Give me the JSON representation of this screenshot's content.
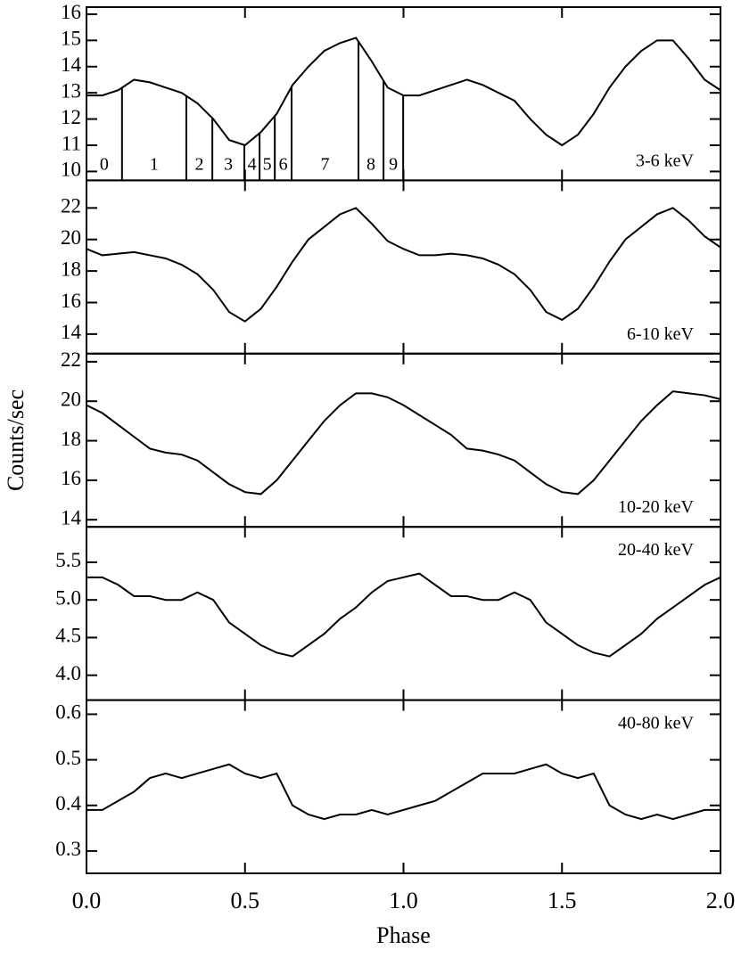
{
  "chart_data": [
    {
      "type": "line",
      "label": "3-6 keV",
      "label_corner": "lower right",
      "color": "#000000",
      "x": [
        0,
        0.05,
        0.1,
        0.15,
        0.2,
        0.25,
        0.3,
        0.35,
        0.4,
        0.45,
        0.5,
        0.55,
        0.6,
        0.65,
        0.7,
        0.75,
        0.8,
        0.85,
        0.9,
        0.95,
        1.0,
        1.05,
        1.1,
        1.15,
        1.2,
        1.25,
        1.3,
        1.35,
        1.4,
        1.45,
        1.5,
        1.55,
        1.6,
        1.65,
        1.7,
        1.75,
        1.8,
        1.85,
        1.9,
        1.95,
        2.0
      ],
      "values": [
        12.9,
        12.9,
        13.1,
        13.5,
        13.4,
        13.2,
        13.0,
        12.6,
        12.0,
        11.2,
        11.0,
        11.5,
        12.2,
        13.3,
        14.0,
        14.6,
        14.9,
        15.1,
        14.2,
        13.2,
        12.9,
        12.9,
        13.1,
        13.3,
        13.5,
        13.3,
        13.0,
        12.7,
        12.0,
        11.4,
        11.0,
        11.4,
        12.2,
        13.2,
        14.0,
        14.6,
        15.0,
        15.0,
        14.3,
        13.5,
        13.1
      ],
      "ylim": [
        9.66,
        16.27
      ],
      "yticks": [
        10,
        11,
        12,
        13,
        14,
        15,
        16
      ],
      "phase_intervals": {
        "labels": [
          "0",
          "1",
          "2",
          "3",
          "4",
          "5",
          "6",
          "7",
          "8",
          "9"
        ],
        "edges": [
          0.112,
          0.315,
          0.397,
          0.498,
          0.546,
          0.594,
          0.647,
          0.858,
          0.937,
          0.999
        ]
      }
    },
    {
      "type": "line",
      "label": "6-10 keV",
      "label_corner": "lower right",
      "color": "#000000",
      "x": [
        0,
        0.05,
        0.1,
        0.15,
        0.2,
        0.25,
        0.3,
        0.35,
        0.4,
        0.45,
        0.5,
        0.55,
        0.6,
        0.65,
        0.7,
        0.75,
        0.8,
        0.85,
        0.9,
        0.95,
        1.0,
        1.05,
        1.1,
        1.15,
        1.2,
        1.25,
        1.3,
        1.35,
        1.4,
        1.45,
        1.5,
        1.55,
        1.6,
        1.65,
        1.7,
        1.75,
        1.8,
        1.85,
        1.9,
        1.95,
        2.0
      ],
      "values": [
        19.4,
        19.0,
        19.1,
        19.2,
        19.0,
        18.8,
        18.4,
        17.8,
        16.8,
        15.4,
        14.8,
        15.6,
        17.0,
        18.6,
        20.0,
        20.8,
        21.6,
        22.0,
        21.0,
        19.9,
        19.4,
        19.0,
        19.0,
        19.1,
        19.0,
        18.8,
        18.4,
        17.8,
        16.8,
        15.4,
        14.9,
        15.6,
        17.0,
        18.6,
        20.0,
        20.8,
        21.6,
        22.0,
        21.2,
        20.2,
        19.5
      ],
      "ylim": [
        12.76,
        23.75
      ],
      "yticks": [
        14,
        16,
        18,
        20,
        22
      ]
    },
    {
      "type": "line",
      "label": "10-20 keV",
      "label_corner": "lower right",
      "color": "#000000",
      "ylabel": "Counts/sec",
      "x": [
        0,
        0.05,
        0.1,
        0.15,
        0.2,
        0.25,
        0.3,
        0.35,
        0.4,
        0.45,
        0.5,
        0.55,
        0.6,
        0.65,
        0.7,
        0.75,
        0.8,
        0.85,
        0.9,
        0.95,
        1.0,
        1.05,
        1.1,
        1.15,
        1.2,
        1.25,
        1.3,
        1.35,
        1.4,
        1.45,
        1.5,
        1.55,
        1.6,
        1.65,
        1.7,
        1.75,
        1.8,
        1.85,
        1.9,
        1.95,
        2.0
      ],
      "values": [
        19.8,
        19.4,
        18.8,
        18.2,
        17.6,
        17.4,
        17.3,
        17.0,
        16.4,
        15.8,
        15.4,
        15.3,
        16.0,
        17.0,
        18.0,
        19.0,
        19.8,
        20.4,
        20.4,
        20.2,
        19.8,
        19.3,
        18.8,
        18.3,
        17.6,
        17.5,
        17.3,
        17.0,
        16.4,
        15.8,
        15.4,
        15.3,
        16.0,
        17.0,
        18.0,
        19.0,
        19.8,
        20.5,
        20.4,
        20.3,
        20.1
      ],
      "ylim": [
        13.64,
        22.41
      ],
      "yticks": [
        14,
        16,
        18,
        20,
        22
      ]
    },
    {
      "type": "line",
      "label": "20-40 keV",
      "label_corner": "upper right",
      "color": "#000000",
      "x": [
        0,
        0.05,
        0.1,
        0.15,
        0.2,
        0.25,
        0.3,
        0.35,
        0.4,
        0.45,
        0.5,
        0.55,
        0.6,
        0.65,
        0.7,
        0.75,
        0.8,
        0.85,
        0.9,
        0.95,
        1.0,
        1.05,
        1.1,
        1.15,
        1.2,
        1.25,
        1.3,
        1.35,
        1.4,
        1.45,
        1.5,
        1.55,
        1.6,
        1.65,
        1.7,
        1.75,
        1.8,
        1.85,
        1.9,
        1.95,
        2.0
      ],
      "values": [
        5.3,
        5.3,
        5.2,
        5.05,
        5.05,
        5.0,
        5.0,
        5.1,
        5.0,
        4.7,
        4.55,
        4.4,
        4.3,
        4.25,
        4.4,
        4.55,
        4.75,
        4.9,
        5.1,
        5.25,
        5.3,
        5.35,
        5.2,
        5.05,
        5.05,
        5.0,
        5.0,
        5.1,
        5.0,
        4.7,
        4.55,
        4.4,
        4.3,
        4.25,
        4.4,
        4.55,
        4.75,
        4.9,
        5.05,
        5.2,
        5.3
      ],
      "ylim": [
        3.67,
        5.97
      ],
      "yticks": [
        {
          "value": 4,
          "label": "4.0"
        },
        4.5,
        {
          "value": 5,
          "label": "5.0"
        },
        5.5
      ]
    },
    {
      "type": "line",
      "label": "40-80 keV",
      "label_corner": "upper right",
      "color": "#000000",
      "xlabel": "Phase",
      "x": [
        0,
        0.05,
        0.1,
        0.15,
        0.2,
        0.25,
        0.3,
        0.35,
        0.4,
        0.45,
        0.5,
        0.55,
        0.6,
        0.65,
        0.7,
        0.75,
        0.8,
        0.85,
        0.9,
        0.95,
        1.0,
        1.05,
        1.1,
        1.15,
        1.2,
        1.25,
        1.3,
        1.35,
        1.4,
        1.45,
        1.5,
        1.55,
        1.6,
        1.65,
        1.7,
        1.75,
        1.8,
        1.85,
        1.9,
        1.95,
        2.0
      ],
      "values": [
        0.39,
        0.39,
        0.41,
        0.43,
        0.46,
        0.47,
        0.46,
        0.47,
        0.48,
        0.49,
        0.47,
        0.46,
        0.47,
        0.4,
        0.38,
        0.37,
        0.38,
        0.38,
        0.39,
        0.38,
        0.39,
        0.4,
        0.41,
        0.43,
        0.45,
        0.47,
        0.47,
        0.47,
        0.48,
        0.49,
        0.47,
        0.46,
        0.47,
        0.4,
        0.38,
        0.37,
        0.38,
        0.37,
        0.38,
        0.39,
        0.39
      ],
      "ylim": [
        0.251,
        0.631
      ],
      "yticks": [
        0.3,
        0.4,
        0.5,
        0.6
      ],
      "xlim": [
        0,
        2
      ],
      "xticks": [
        {
          "value": 0,
          "label": "0.0"
        },
        0.5,
        {
          "value": 1,
          "label": "1.0"
        },
        1.5,
        {
          "value": 2,
          "label": "2.0"
        }
      ]
    }
  ]
}
